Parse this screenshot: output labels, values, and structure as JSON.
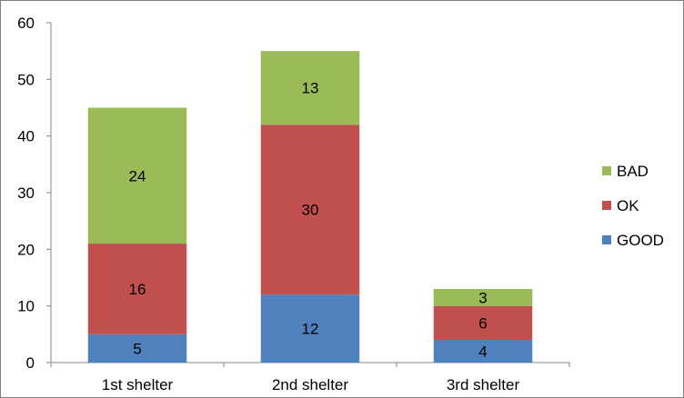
{
  "chart_data": {
    "type": "bar",
    "stacked": true,
    "categories": [
      "1st shelter",
      "2nd shelter",
      "3rd shelter"
    ],
    "series": [
      {
        "name": "GOOD",
        "values": [
          5,
          12,
          4
        ],
        "color": "#4f81bd"
      },
      {
        "name": "OK",
        "values": [
          16,
          30,
          6
        ],
        "color": "#c0504d"
      },
      {
        "name": "BAD",
        "values": [
          24,
          13,
          3
        ],
        "color": "#9bbb59"
      }
    ],
    "ylim": [
      0,
      60
    ],
    "yticks": [
      "0",
      "10",
      "20",
      "30",
      "40",
      "50",
      "60"
    ],
    "grid": false,
    "legend_position": "right",
    "data_labels": true
  }
}
